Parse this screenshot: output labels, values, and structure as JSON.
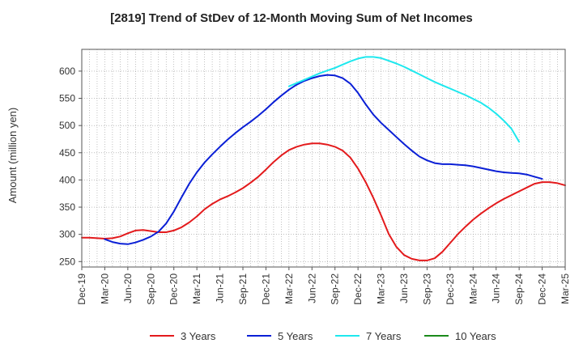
{
  "chart_data": {
    "type": "line",
    "title": "[2819]  Trend of StDev of 12-Month Moving Sum of Net Incomes",
    "ylabel": "Amount (million yen)",
    "xlabel": "",
    "ylim": [
      240,
      640
    ],
    "yticks": [
      250,
      300,
      350,
      400,
      450,
      500,
      550,
      600
    ],
    "xticks": [
      "Dec-19",
      "Mar-20",
      "Jun-20",
      "Sep-20",
      "Dec-20",
      "Mar-21",
      "Jun-21",
      "Sep-21",
      "Dec-21",
      "Mar-22",
      "Jun-22",
      "Sep-22",
      "Dec-22",
      "Mar-23",
      "Jun-23",
      "Sep-23",
      "Dec-23",
      "Mar-24",
      "Jun-24",
      "Sep-24",
      "Dec-24",
      "Mar-25"
    ],
    "grid": true,
    "legend_position": "bottom",
    "series": [
      {
        "name": "3 Years",
        "color": "#e31a1c",
        "points": [
          [
            0,
            294
          ],
          [
            1,
            294
          ],
          [
            2,
            293
          ],
          [
            3,
            292
          ],
          [
            4,
            293
          ],
          [
            5,
            296
          ],
          [
            6,
            302
          ],
          [
            7,
            307
          ],
          [
            8,
            308
          ],
          [
            9,
            306
          ],
          [
            10,
            304
          ],
          [
            11,
            304
          ],
          [
            12,
            307
          ],
          [
            13,
            313
          ],
          [
            14,
            322
          ],
          [
            15,
            333
          ],
          [
            16,
            346
          ],
          [
            17,
            356
          ],
          [
            18,
            364
          ],
          [
            19,
            370
          ],
          [
            20,
            377
          ],
          [
            21,
            385
          ],
          [
            22,
            395
          ],
          [
            23,
            406
          ],
          [
            24,
            419
          ],
          [
            25,
            433
          ],
          [
            26,
            445
          ],
          [
            27,
            455
          ],
          [
            28,
            461
          ],
          [
            29,
            465
          ],
          [
            30,
            467
          ],
          [
            31,
            467
          ],
          [
            32,
            465
          ],
          [
            33,
            461
          ],
          [
            34,
            454
          ],
          [
            35,
            441
          ],
          [
            36,
            421
          ],
          [
            37,
            396
          ],
          [
            38,
            367
          ],
          [
            39,
            335
          ],
          [
            40,
            301
          ],
          [
            41,
            277
          ],
          [
            42,
            262
          ],
          [
            43,
            255
          ],
          [
            44,
            252
          ],
          [
            45,
            252
          ],
          [
            46,
            256
          ],
          [
            47,
            268
          ],
          [
            48,
            284
          ],
          [
            49,
            300
          ],
          [
            50,
            314
          ],
          [
            51,
            327
          ],
          [
            52,
            338
          ],
          [
            53,
            348
          ],
          [
            54,
            357
          ],
          [
            55,
            365
          ],
          [
            56,
            372
          ],
          [
            57,
            379
          ],
          [
            58,
            386
          ],
          [
            59,
            393
          ],
          [
            60,
            396
          ],
          [
            61,
            396
          ],
          [
            62,
            394
          ],
          [
            63,
            390
          ]
        ]
      },
      {
        "name": "5 Years",
        "color": "#0a1fd6",
        "points": [
          [
            3,
            291
          ],
          [
            4,
            286
          ],
          [
            5,
            283
          ],
          [
            6,
            282
          ],
          [
            7,
            285
          ],
          [
            8,
            290
          ],
          [
            9,
            296
          ],
          [
            10,
            305
          ],
          [
            11,
            320
          ],
          [
            12,
            342
          ],
          [
            13,
            368
          ],
          [
            14,
            393
          ],
          [
            15,
            414
          ],
          [
            16,
            432
          ],
          [
            17,
            447
          ],
          [
            18,
            461
          ],
          [
            19,
            474
          ],
          [
            20,
            486
          ],
          [
            21,
            497
          ],
          [
            22,
            507
          ],
          [
            23,
            518
          ],
          [
            24,
            530
          ],
          [
            25,
            543
          ],
          [
            26,
            555
          ],
          [
            27,
            566
          ],
          [
            28,
            575
          ],
          [
            29,
            582
          ],
          [
            30,
            587
          ],
          [
            31,
            591
          ],
          [
            32,
            593
          ],
          [
            33,
            592
          ],
          [
            34,
            587
          ],
          [
            35,
            577
          ],
          [
            36,
            560
          ],
          [
            37,
            539
          ],
          [
            38,
            520
          ],
          [
            39,
            505
          ],
          [
            40,
            492
          ],
          [
            41,
            479
          ],
          [
            42,
            466
          ],
          [
            43,
            454
          ],
          [
            44,
            443
          ],
          [
            45,
            436
          ],
          [
            46,
            431
          ],
          [
            47,
            429
          ],
          [
            48,
            429
          ],
          [
            49,
            428
          ],
          [
            50,
            427
          ],
          [
            51,
            425
          ],
          [
            52,
            422
          ],
          [
            53,
            419
          ],
          [
            54,
            416
          ],
          [
            55,
            414
          ],
          [
            56,
            413
          ],
          [
            57,
            412
          ],
          [
            58,
            410
          ],
          [
            59,
            406
          ],
          [
            60,
            402
          ]
        ]
      },
      {
        "name": "7 Years",
        "color": "#1ee8ee",
        "points": [
          [
            27,
            572
          ],
          [
            28,
            578
          ],
          [
            29,
            584
          ],
          [
            30,
            590
          ],
          [
            31,
            596
          ],
          [
            32,
            601
          ],
          [
            33,
            606
          ],
          [
            34,
            612
          ],
          [
            35,
            618
          ],
          [
            36,
            623
          ],
          [
            37,
            626
          ],
          [
            38,
            626
          ],
          [
            39,
            624
          ],
          [
            40,
            619
          ],
          [
            41,
            614
          ],
          [
            42,
            608
          ],
          [
            43,
            601
          ],
          [
            44,
            594
          ],
          [
            45,
            587
          ],
          [
            46,
            580
          ],
          [
            47,
            574
          ],
          [
            48,
            568
          ],
          [
            49,
            562
          ],
          [
            50,
            556
          ],
          [
            51,
            549
          ],
          [
            52,
            542
          ],
          [
            53,
            533
          ],
          [
            54,
            522
          ],
          [
            55,
            509
          ],
          [
            56,
            494
          ],
          [
            57,
            470
          ]
        ]
      },
      {
        "name": "10 Years",
        "color": "#1b8a1b",
        "points": []
      }
    ]
  }
}
